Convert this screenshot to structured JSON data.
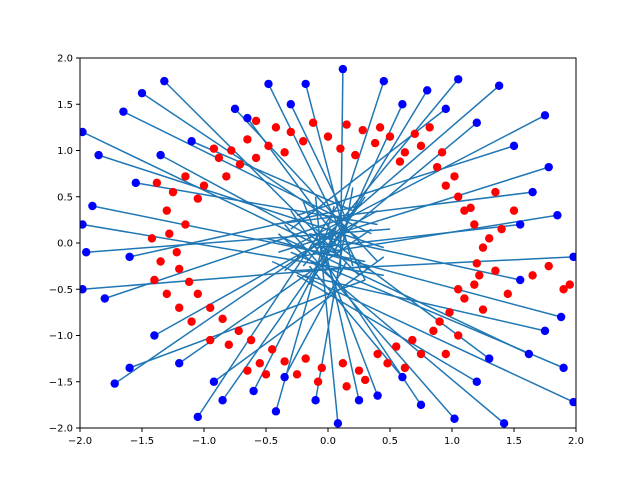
{
  "chart_data": {
    "type": "scatter",
    "title": "",
    "xlabel": "",
    "ylabel": "",
    "xlim": [
      -2.0,
      2.0
    ],
    "ylim": [
      -2.0,
      2.0
    ],
    "x_ticks": [
      "−2.0",
      "−1.5",
      "−1.0",
      "−0.5",
      "0.0",
      "0.5",
      "1.0",
      "1.5",
      "2.0"
    ],
    "y_ticks": [
      "−2.0",
      "−1.5",
      "−1.0",
      "−0.5",
      "0.0",
      "0.5",
      "1.0",
      "1.5",
      "2.0"
    ],
    "x_tick_values": [
      -2.0,
      -1.5,
      -1.0,
      -0.5,
      0.0,
      0.5,
      1.0,
      1.5,
      2.0
    ],
    "y_tick_values": [
      -2.0,
      -1.5,
      -1.0,
      -0.5,
      0.0,
      0.5,
      1.0,
      1.5,
      2.0
    ],
    "grid": false,
    "legend": "none",
    "colors": {
      "red_points": "#ff0000",
      "blue_points": "#0000ff",
      "segments": "#1f77b4",
      "axes": "#000000"
    },
    "series": [
      {
        "kind": "points",
        "color": "red",
        "points": [
          [
            -0.92,
            1.02
          ],
          [
            -0.71,
            0.85
          ],
          [
            -0.48,
            1.05
          ],
          [
            -0.2,
            1.1
          ],
          [
            0.1,
            1.02
          ],
          [
            0.38,
            1.08
          ],
          [
            0.62,
            0.98
          ],
          [
            0.88,
            0.82
          ],
          [
            1.05,
            0.5
          ],
          [
            1.18,
            0.2
          ],
          [
            1.25,
            -0.05
          ],
          [
            1.22,
            -0.35
          ],
          [
            1.1,
            -0.6
          ],
          [
            0.9,
            -0.85
          ],
          [
            0.68,
            -1.05
          ],
          [
            0.4,
            -1.2
          ],
          [
            0.12,
            -1.3
          ],
          [
            -0.18,
            -1.25
          ],
          [
            -0.45,
            -1.15
          ],
          [
            -0.72,
            -0.95
          ],
          [
            -0.95,
            -0.7
          ],
          [
            -1.12,
            -0.42
          ],
          [
            -1.22,
            -0.1
          ],
          [
            -1.15,
            0.2
          ],
          [
            -1.05,
            0.48
          ],
          [
            -0.82,
            0.72
          ],
          [
            -0.58,
            0.92
          ],
          [
            -0.35,
            0.98
          ],
          [
            0.22,
            0.95
          ],
          [
            0.5,
            1.15
          ],
          [
            0.75,
            1.05
          ],
          [
            1.02,
            0.72
          ],
          [
            1.15,
            0.38
          ],
          [
            1.3,
            0.05
          ],
          [
            1.2,
            -0.22
          ],
          [
            1.05,
            -0.5
          ],
          [
            0.85,
            -0.95
          ],
          [
            0.55,
            -1.12
          ],
          [
            0.25,
            -1.38
          ],
          [
            -0.05,
            -1.35
          ],
          [
            -0.35,
            -1.28
          ],
          [
            -0.62,
            -1.05
          ],
          [
            -0.85,
            -0.82
          ],
          [
            -1.05,
            -0.55
          ],
          [
            -1.2,
            -0.28
          ],
          [
            -1.28,
            0.1
          ],
          [
            -1.0,
            0.62
          ],
          [
            -0.65,
            1.12
          ],
          [
            -0.3,
            1.2
          ],
          [
            0.0,
            1.15
          ],
          [
            0.28,
            1.22
          ],
          [
            0.58,
            0.88
          ],
          [
            0.95,
            0.62
          ],
          [
            1.1,
            0.35
          ],
          [
            1.18,
            -0.45
          ],
          [
            0.98,
            -0.75
          ],
          [
            0.75,
            -1.2
          ],
          [
            0.48,
            -1.3
          ],
          [
            -0.25,
            -1.42
          ],
          [
            -0.55,
            -1.3
          ],
          [
            -0.8,
            -1.1
          ],
          [
            -1.1,
            -0.85
          ],
          [
            -1.3,
            -0.55
          ],
          [
            -1.35,
            -0.2
          ],
          [
            -1.3,
            0.35
          ],
          [
            -1.15,
            0.72
          ],
          [
            -0.88,
            0.92
          ],
          [
            -0.42,
            1.25
          ],
          [
            0.15,
            1.28
          ],
          [
            0.42,
            1.25
          ],
          [
            0.7,
            1.18
          ],
          [
            0.92,
            0.98
          ],
          [
            1.35,
            0.55
          ],
          [
            1.4,
            0.15
          ],
          [
            1.35,
            -0.3
          ],
          [
            1.25,
            -0.72
          ],
          [
            1.05,
            -1.0
          ],
          [
            0.62,
            -1.35
          ],
          [
            0.3,
            -1.48
          ],
          [
            -0.08,
            -1.5
          ],
          [
            -0.5,
            -1.42
          ],
          [
            -0.95,
            -1.05
          ],
          [
            -1.2,
            -0.7
          ],
          [
            -1.42,
            0.05
          ],
          [
            -1.25,
            0.55
          ],
          [
            -0.78,
            1.0
          ],
          [
            -0.12,
            1.3
          ],
          [
            0.82,
            1.25
          ],
          [
            1.5,
            0.35
          ],
          [
            1.45,
            -0.55
          ],
          [
            0.95,
            -1.2
          ],
          [
            0.15,
            -1.55
          ],
          [
            -0.65,
            -1.38
          ],
          [
            -1.4,
            -0.4
          ],
          [
            -1.38,
            0.65
          ],
          [
            -0.58,
            1.32
          ],
          [
            1.78,
            -0.25
          ],
          [
            1.9,
            -0.5
          ],
          [
            1.65,
            -0.35
          ],
          [
            1.95,
            -0.45
          ]
        ]
      },
      {
        "kind": "segments",
        "color": "blue",
        "segments": [
          [
            [
              -1.65,
              1.42
            ],
            [
              0.35,
              0.1
            ]
          ],
          [
            [
              -1.5,
              1.62
            ],
            [
              0.25,
              0.05
            ]
          ],
          [
            [
              -1.85,
              0.95
            ],
            [
              0.45,
              -0.05
            ]
          ],
          [
            [
              -1.9,
              0.4
            ],
            [
              0.3,
              -0.2
            ]
          ],
          [
            [
              -1.95,
              -0.1
            ],
            [
              0.5,
              0.15
            ]
          ],
          [
            [
              -1.8,
              -0.6
            ],
            [
              0.2,
              0.3
            ]
          ],
          [
            [
              -1.72,
              -1.52
            ],
            [
              0.15,
              0.2
            ]
          ],
          [
            [
              -1.4,
              -1.0
            ],
            [
              0.4,
              0.35
            ]
          ],
          [
            [
              -1.05,
              -1.88
            ],
            [
              0.1,
              0.45
            ]
          ],
          [
            [
              -0.85,
              -1.7
            ],
            [
              0.3,
              0.5
            ]
          ],
          [
            [
              -0.42,
              -1.82
            ],
            [
              0.05,
              0.4
            ]
          ],
          [
            [
              -0.1,
              -1.7
            ],
            [
              0.2,
              0.6
            ]
          ],
          [
            [
              0.08,
              -1.95
            ],
            [
              -0.1,
              0.5
            ]
          ],
          [
            [
              0.4,
              -1.65
            ],
            [
              -0.2,
              0.45
            ]
          ],
          [
            [
              0.75,
              -1.75
            ],
            [
              -0.3,
              0.35
            ]
          ],
          [
            [
              1.02,
              -1.9
            ],
            [
              -0.35,
              0.2
            ]
          ],
          [
            [
              1.42,
              -1.95
            ],
            [
              -0.4,
              0.1
            ]
          ],
          [
            [
              1.62,
              -1.2
            ],
            [
              -0.35,
              0.05
            ]
          ],
          [
            [
              1.9,
              -1.35
            ],
            [
              -0.3,
              -0.1
            ]
          ],
          [
            [
              1.98,
              -1.72
            ],
            [
              -0.45,
              -0.2
            ]
          ],
          [
            [
              1.88,
              -0.8
            ],
            [
              -0.5,
              0.05
            ]
          ],
          [
            [
              1.98,
              -0.15
            ],
            [
              -0.3,
              -0.3
            ]
          ],
          [
            [
              1.85,
              0.3
            ],
            [
              -0.25,
              -0.15
            ]
          ],
          [
            [
              1.78,
              0.82
            ],
            [
              -0.4,
              -0.1
            ]
          ],
          [
            [
              1.75,
              1.38
            ],
            [
              -0.3,
              -0.05
            ]
          ],
          [
            [
              1.38,
              1.7
            ],
            [
              -0.35,
              -0.3
            ]
          ],
          [
            [
              1.05,
              1.77
            ],
            [
              -0.2,
              -0.25
            ]
          ],
          [
            [
              0.8,
              1.65
            ],
            [
              -0.15,
              -0.45
            ]
          ],
          [
            [
              0.45,
              1.75
            ],
            [
              -0.05,
              -0.3
            ]
          ],
          [
            [
              0.12,
              1.88
            ],
            [
              0.1,
              -0.35
            ]
          ],
          [
            [
              -0.18,
              1.72
            ],
            [
              0.2,
              -0.25
            ]
          ],
          [
            [
              -0.48,
              1.72
            ],
            [
              0.3,
              -0.4
            ]
          ],
          [
            [
              -0.75,
              1.45
            ],
            [
              0.4,
              -0.2
            ]
          ],
          [
            [
              -1.32,
              1.75
            ],
            [
              0.25,
              -0.35
            ]
          ],
          [
            [
              -1.98,
              1.2
            ],
            [
              0.35,
              -0.3
            ]
          ],
          [
            [
              -1.98,
              0.2
            ],
            [
              0.45,
              -0.35
            ]
          ],
          [
            [
              -1.98,
              -0.5
            ],
            [
              0.35,
              -0.25
            ]
          ],
          [
            [
              -1.6,
              -1.35
            ],
            [
              0.3,
              -0.4
            ]
          ],
          [
            [
              -0.92,
              -1.5
            ],
            [
              0.45,
              -0.15
            ]
          ],
          [
            [
              -0.35,
              -1.45
            ],
            [
              0.15,
              -0.2
            ]
          ],
          [
            [
              0.6,
              -1.45
            ],
            [
              -0.15,
              -0.25
            ]
          ],
          [
            [
              1.2,
              -1.5
            ],
            [
              -0.25,
              -0.35
            ]
          ],
          [
            [
              1.75,
              -0.95
            ],
            [
              -0.2,
              -0.35
            ]
          ],
          [
            [
              1.65,
              0.55
            ],
            [
              -0.45,
              0.2
            ]
          ],
          [
            [
              1.5,
              1.05
            ],
            [
              -0.25,
              0.3
            ]
          ],
          [
            [
              0.95,
              1.45
            ],
            [
              -0.3,
              0.15
            ]
          ],
          [
            [
              -0.3,
              1.5
            ],
            [
              0.15,
              0.25
            ]
          ],
          [
            [
              -1.1,
              1.1
            ],
            [
              0.2,
              0.35
            ]
          ],
          [
            [
              -1.55,
              0.65
            ],
            [
              0.4,
              0.2
            ]
          ],
          [
            [
              -1.6,
              -0.15
            ],
            [
              0.25,
              0.4
            ]
          ],
          [
            [
              -1.2,
              -1.3
            ],
            [
              0.35,
              0.15
            ]
          ],
          [
            [
              -0.6,
              -1.6
            ],
            [
              0.05,
              0.1
            ]
          ],
          [
            [
              0.25,
              -1.7
            ],
            [
              -0.05,
              0.1
            ]
          ],
          [
            [
              1.3,
              -1.25
            ],
            [
              -0.1,
              0.15
            ]
          ],
          [
            [
              1.55,
              -0.4
            ],
            [
              -0.15,
              0.1
            ]
          ],
          [
            [
              1.55,
              0.2
            ],
            [
              -0.1,
              -0.05
            ]
          ],
          [
            [
              1.2,
              1.3
            ],
            [
              -0.05,
              -0.1
            ]
          ],
          [
            [
              0.6,
              1.5
            ],
            [
              0.05,
              -0.1
            ]
          ],
          [
            [
              -0.65,
              1.35
            ],
            [
              0.1,
              0.0
            ]
          ],
          [
            [
              -1.35,
              0.95
            ],
            [
              0.1,
              -0.1
            ]
          ]
        ]
      }
    ]
  }
}
